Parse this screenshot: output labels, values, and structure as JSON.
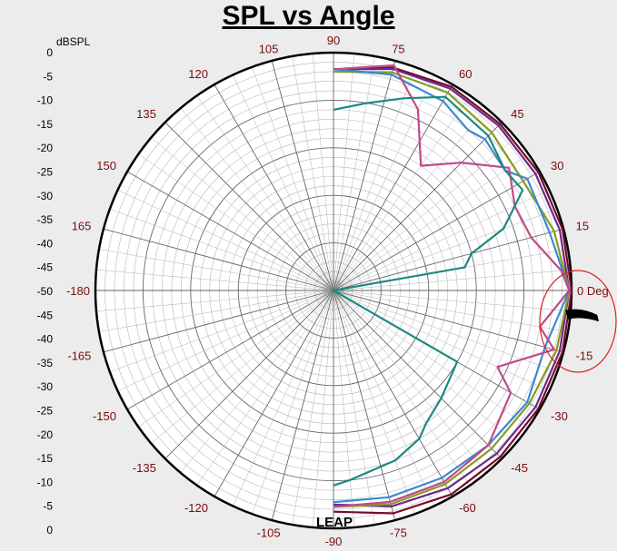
{
  "chart_data": {
    "type": "polar",
    "title": "SPL vs Angle",
    "radial_label": "dBSPL",
    "radial_ticks_left": [
      "0",
      "-5",
      "-10",
      "-15",
      "-20",
      "-25",
      "-30",
      "-35",
      "-40",
      "-45",
      "-50",
      "-45",
      "-40",
      "-35",
      "-30",
      "-25",
      "-20",
      "-15",
      "-10",
      "-5",
      "0"
    ],
    "radial_range": [
      -50,
      0
    ],
    "angle_range": [
      -180,
      180
    ],
    "angle_ticks": [
      {
        "deg": 90,
        "label": "90"
      },
      {
        "deg": 75,
        "label": "75"
      },
      {
        "deg": 60,
        "label": "60"
      },
      {
        "deg": 45,
        "label": "45"
      },
      {
        "deg": 30,
        "label": "30"
      },
      {
        "deg": 15,
        "label": "15"
      },
      {
        "deg": 0,
        "label": "0 Deg"
      },
      {
        "deg": -15,
        "label": "-15"
      },
      {
        "deg": -30,
        "label": "-30"
      },
      {
        "deg": -45,
        "label": "-45"
      },
      {
        "deg": -60,
        "label": "-60"
      },
      {
        "deg": -75,
        "label": "-75"
      },
      {
        "deg": -90,
        "label": "-90"
      },
      {
        "deg": -105,
        "label": "-105"
      },
      {
        "deg": -120,
        "label": "-120"
      },
      {
        "deg": -135,
        "label": "-135"
      },
      {
        "deg": -150,
        "label": "-150"
      },
      {
        "deg": -165,
        "label": "-165"
      },
      {
        "deg": 180,
        "label": "-180"
      },
      {
        "deg": 165,
        "label": "165"
      },
      {
        "deg": 150,
        "label": "150"
      },
      {
        "deg": 135,
        "label": "135"
      },
      {
        "deg": 120,
        "label": "120"
      },
      {
        "deg": 105,
        "label": "105"
      }
    ],
    "grid": true,
    "series": [
      {
        "color": "#7a0a2a",
        "points": [
          [
            90,
            -3.5
          ],
          [
            75,
            -1.5
          ],
          [
            60,
            -0.5
          ],
          [
            45,
            -0.5
          ],
          [
            30,
            -0.3
          ],
          [
            15,
            -0.2
          ],
          [
            0,
            0
          ],
          [
            -15,
            -0.2
          ],
          [
            -30,
            -0.3
          ],
          [
            -45,
            -0.5
          ],
          [
            -60,
            -0.5
          ],
          [
            -75,
            -1.5
          ],
          [
            -90,
            -3.5
          ]
        ]
      },
      {
        "color": "#6a2a8a",
        "points": [
          [
            90,
            -3.5
          ],
          [
            75,
            -1.8
          ],
          [
            60,
            -1
          ],
          [
            45,
            -1
          ],
          [
            30,
            -1
          ],
          [
            15,
            -0.8
          ],
          [
            0,
            -0.5
          ],
          [
            -15,
            -0.8
          ],
          [
            -30,
            -1
          ],
          [
            -45,
            -1.5
          ],
          [
            -60,
            -2
          ],
          [
            -75,
            -3
          ],
          [
            -90,
            -5
          ]
        ]
      },
      {
        "color": "#8a9a20",
        "points": [
          [
            90,
            -4
          ],
          [
            75,
            -2.5
          ],
          [
            60,
            -2
          ],
          [
            45,
            -3
          ],
          [
            30,
            -4
          ],
          [
            20,
            -3
          ],
          [
            15,
            -2
          ],
          [
            0,
            -0.5
          ],
          [
            -15,
            -1.5
          ],
          [
            -30,
            -2.5
          ],
          [
            -45,
            -3
          ],
          [
            -60,
            -3
          ],
          [
            -75,
            -3.5
          ],
          [
            -90,
            -4.5
          ]
        ]
      },
      {
        "color": "#3a8ad0",
        "points": [
          [
            90,
            -3.5
          ],
          [
            75,
            -3
          ],
          [
            60,
            -4
          ],
          [
            50,
            -6
          ],
          [
            45,
            -5
          ],
          [
            35,
            -6
          ],
          [
            30,
            -3
          ],
          [
            15,
            -3
          ],
          [
            0,
            -0.5
          ],
          [
            -15,
            -4
          ],
          [
            -30,
            -3
          ],
          [
            -45,
            -4
          ],
          [
            -60,
            -4.5
          ],
          [
            -75,
            -5
          ],
          [
            -90,
            -5.5
          ]
        ]
      },
      {
        "color": "#c04a8a",
        "points": [
          [
            90,
            -3.5
          ],
          [
            75,
            -1
          ],
          [
            65,
            -8
          ],
          [
            55,
            -18
          ],
          [
            45,
            -12
          ],
          [
            35,
            -5
          ],
          [
            25,
            -8
          ],
          [
            15,
            -7
          ],
          [
            5,
            -2
          ],
          [
            0,
            -0.5
          ],
          [
            -10,
            -6
          ],
          [
            -15,
            -2
          ],
          [
            -25,
            -12
          ],
          [
            -30,
            -7
          ],
          [
            -45,
            -4
          ],
          [
            -60,
            -3.5
          ],
          [
            -75,
            -4
          ],
          [
            -90,
            -4.5
          ]
        ]
      },
      {
        "color": "#1a8a80",
        "points": [
          [
            90,
            -12
          ],
          [
            80,
            -10
          ],
          [
            70,
            -7
          ],
          [
            60,
            -3
          ],
          [
            45,
            -4
          ],
          [
            35,
            -6
          ],
          [
            28,
            -5
          ],
          [
            25,
            -8
          ],
          [
            20,
            -12
          ],
          [
            15,
            -20
          ],
          [
            10,
            -22
          ],
          [
            0,
            -50
          ],
          [
            -30,
            -20
          ],
          [
            -45,
            -18
          ],
          [
            -55,
            -16
          ],
          [
            -60,
            -14
          ],
          [
            -70,
            -12
          ],
          [
            -85,
            -10
          ],
          [
            -90,
            -9
          ]
        ]
      }
    ]
  },
  "annotations": {
    "highlight_label": "0 Deg",
    "bottom_logo_text": "LEAP"
  }
}
